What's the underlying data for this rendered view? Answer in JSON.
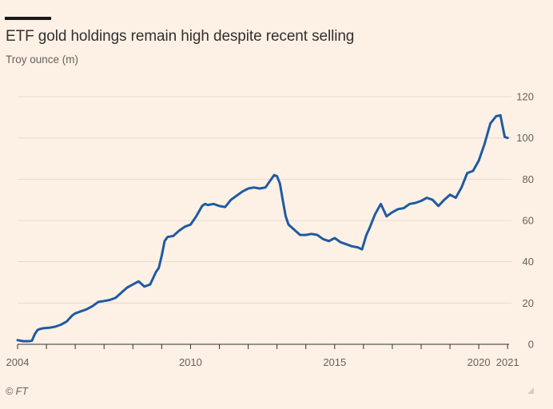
{
  "title": "ETF gold holdings remain high despite recent selling",
  "subtitle": "Troy ounce (m)",
  "source": "© FT",
  "colors": {
    "background": "#fdf1e5",
    "line": "#1f5aa3",
    "grid": "#e6d9ce",
    "text": "#66605c"
  },
  "chart_data": {
    "type": "line",
    "title": "ETF gold holdings remain high despite recent selling",
    "ylabel": "Troy ounce (m)",
    "xlabel": "",
    "xlim": [
      2004,
      2021.05
    ],
    "ylim": [
      0,
      120
    ],
    "grid": true,
    "y_axis_side": "right",
    "xticks": [
      {
        "value": 2004,
        "label": "2004"
      },
      {
        "value": 2010,
        "label": "2010"
      },
      {
        "value": 2015,
        "label": "2015"
      },
      {
        "value": 2020,
        "label": "2020"
      },
      {
        "value": 2021,
        "label": "2021"
      }
    ],
    "yticks": [
      0,
      20,
      40,
      60,
      80,
      100,
      120
    ],
    "series": [
      {
        "x": [
          2004.0,
          2004.2,
          2004.4,
          2004.5,
          2004.6,
          2004.7,
          2004.8,
          2004.9,
          2005.1,
          2005.3,
          2005.5,
          2005.7,
          2005.9,
          2006.0,
          2006.2,
          2006.4,
          2006.6,
          2006.8,
          2007.0,
          2007.2,
          2007.4,
          2007.6,
          2007.8,
          2008.0,
          2008.2,
          2008.4,
          2008.6,
          2008.8,
          2008.9,
          2009.0,
          2009.1,
          2009.2,
          2009.4,
          2009.6,
          2009.8,
          2010.0,
          2010.2,
          2010.4,
          2010.5,
          2010.6,
          2010.8,
          2011.0,
          2011.2,
          2011.4,
          2011.6,
          2011.8,
          2012.0,
          2012.2,
          2012.4,
          2012.6,
          2012.8,
          2012.9,
          2013.0,
          2013.1,
          2013.2,
          2013.3,
          2013.4,
          2013.6,
          2013.8,
          2014.0,
          2014.2,
          2014.4,
          2014.6,
          2014.8,
          2015.0,
          2015.2,
          2015.4,
          2015.6,
          2015.8,
          2015.95,
          2016.1,
          2016.2,
          2016.4,
          2016.6,
          2016.8,
          2017.0,
          2017.2,
          2017.4,
          2017.6,
          2017.8,
          2018.0,
          2018.2,
          2018.4,
          2018.6,
          2018.8,
          2019.0,
          2019.2,
          2019.4,
          2019.6,
          2019.8,
          2020.0,
          2020.2,
          2020.4,
          2020.6,
          2020.75,
          2020.9,
          2021.0
        ],
        "values": [
          2,
          1.5,
          1.5,
          1.8,
          5,
          7,
          7.5,
          7.8,
          8,
          8.5,
          9.5,
          11,
          14,
          15,
          16,
          17,
          18.5,
          20.5,
          21,
          21.5,
          22.5,
          25,
          27.5,
          29,
          30.5,
          28,
          29,
          35,
          37,
          43,
          50,
          52,
          52.5,
          55,
          57,
          58,
          62,
          67,
          68,
          67.5,
          68,
          67,
          66.5,
          70,
          72,
          74,
          75.5,
          76,
          75.5,
          76,
          80,
          82,
          81.5,
          78,
          70,
          62,
          58,
          55.5,
          53,
          53,
          53.5,
          53,
          51,
          50,
          51.5,
          49.5,
          48.5,
          47.5,
          47,
          46,
          53,
          56,
          63,
          68,
          62,
          64,
          65.5,
          66,
          68,
          68.5,
          69.5,
          71,
          70,
          67,
          70,
          72.5,
          71,
          76,
          83,
          84,
          89,
          97,
          107,
          110.5,
          111,
          100.5,
          100
        ]
      }
    ]
  }
}
